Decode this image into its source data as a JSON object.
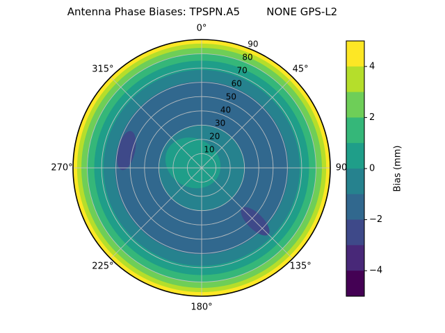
{
  "chart_data": {
    "type": "polar_contour",
    "title": "Antenna Phase Biases: TPSPN.A5        NONE GPS-L2",
    "colormap": "viridis",
    "units": "mm",
    "theta_zero": "top",
    "theta_direction": "clockwise",
    "r_max": 90,
    "theta_tick_angles": [
      0,
      45,
      90,
      135,
      180,
      225,
      270,
      315
    ],
    "theta_tick_labels": [
      "0°",
      "45°",
      "90",
      "135°",
      "180°",
      "225°",
      "270°",
      "315°"
    ],
    "r_tick_values": [
      10,
      20,
      30,
      40,
      50,
      60,
      70,
      80,
      90
    ],
    "r_tick_labels": [
      "10",
      "20",
      "30",
      "40",
      "50",
      "60",
      "70",
      "80",
      "90"
    ],
    "r_label_angle_deg": 22.5,
    "contour_levels": [
      -5,
      -4,
      -3,
      -2,
      -1,
      0,
      1,
      2,
      3,
      4,
      5
    ],
    "band_colors_low_to_high": [
      "#440154",
      "#482878",
      "#3e4989",
      "#31688e",
      "#26828e",
      "#1f9e89",
      "#35b779",
      "#6ece58",
      "#b5de2b",
      "#fde725"
    ],
    "radial_bands": [
      {
        "zenith_max": 90,
        "bias_range": "4 to 5",
        "color": "#fde725"
      },
      {
        "zenith_max": 87,
        "bias_range": "3 to 4",
        "color": "#b5de2b"
      },
      {
        "zenith_max": 84,
        "bias_range": "2 to 3",
        "color": "#6ece58"
      },
      {
        "zenith_max": 80,
        "bias_range": "1 to 2",
        "color": "#35b779"
      },
      {
        "zenith_max": 75,
        "bias_range": "0 to 1",
        "color": "#1f9e89"
      },
      {
        "zenith_max": 68.5,
        "bias_range": "-1 to 0",
        "color": "#26828e"
      },
      {
        "zenith_max": 60.5,
        "bias_range": "-2 to -1",
        "color": "#31688e"
      },
      {
        "zenith_max": 30,
        "bias_range": "-1 to 0",
        "color": "#26828e"
      }
    ],
    "patches": [
      {
        "azimuth": 300,
        "zenith": 7,
        "radial_half": 20,
        "tangential_half": 17,
        "color": "#1f9e89",
        "note": "central region, bias 0 to 1"
      },
      {
        "azimuth": 283,
        "zenith": 54,
        "radial_half": 6,
        "tangential_half": 14,
        "color": "#3e4989",
        "note": "local minimum, bias -3 to -2"
      },
      {
        "azimuth": 135,
        "zenith": 53,
        "radial_half": 13,
        "tangential_half": 5.5,
        "color": "#3e4989",
        "note": "local minimum, bias -3 to -2"
      }
    ],
    "radial_profile": [
      {
        "zenith": 0,
        "bias": 0.8
      },
      {
        "zenith": 10,
        "bias": 0.5
      },
      {
        "zenith": 20,
        "bias": 0.1
      },
      {
        "zenith": 30,
        "bias": -0.5
      },
      {
        "zenith": 45,
        "bias": -1.5
      },
      {
        "zenith": 60,
        "bias": -1.5
      },
      {
        "zenith": 70,
        "bias": -0.5
      },
      {
        "zenith": 76,
        "bias": 0.5
      },
      {
        "zenith": 81,
        "bias": 1.5
      },
      {
        "zenith": 85,
        "bias": 2.5
      },
      {
        "zenith": 88,
        "bias": 3.5
      },
      {
        "zenith": 90,
        "bias": 4.8
      }
    ],
    "grid_color": "#c4c4c4",
    "outline_color": "#000000",
    "colorbar": {
      "label": "Bias (mm)",
      "min": -5,
      "max": 5,
      "tick_values": [
        4,
        2,
        0,
        -2,
        -4
      ],
      "tick_labels": [
        "4",
        "2",
        "0",
        "−2",
        "−4"
      ]
    }
  }
}
